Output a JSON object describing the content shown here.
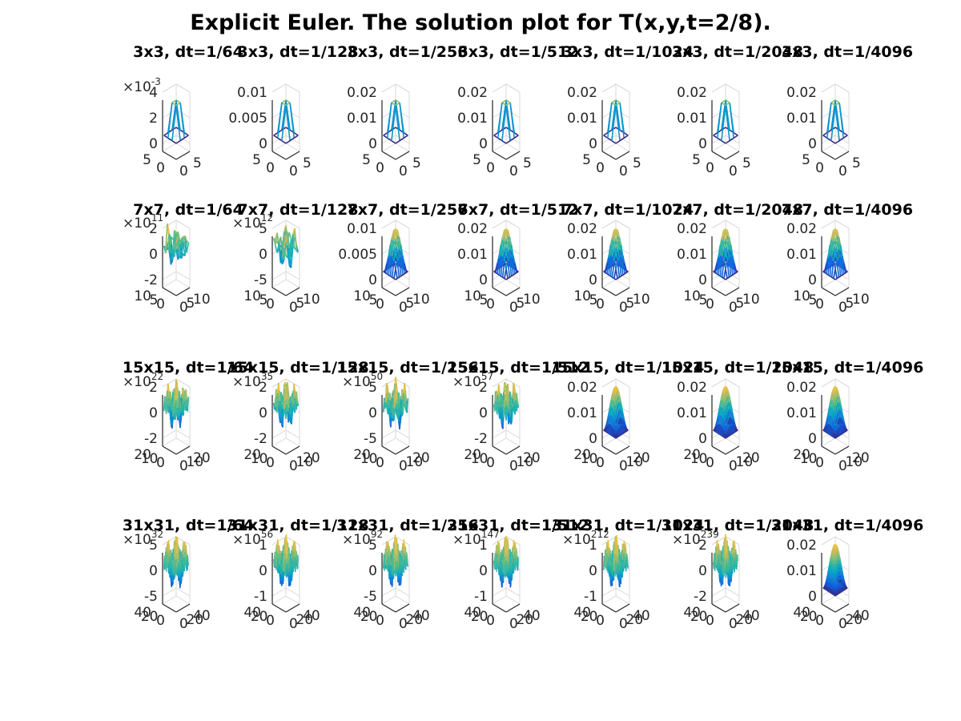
{
  "title": "Explicit Euler. The solution plot for T(x,y,t=2/8).",
  "colors": {
    "axis": "#262626",
    "grid": "#d9d9d9",
    "parula": [
      "#352a87",
      "#0f5cdd",
      "#1481d6",
      "#06a4ca",
      "#2eb7a4",
      "#87bf77",
      "#d1bb59",
      "#fec832",
      "#f9fb0e"
    ]
  },
  "chart_data": [
    {
      "row": 0,
      "col": 0,
      "title": "3x3, dt=1/64",
      "type": "surface",
      "grid_n": 3,
      "stable": true,
      "zticks": [
        "0",
        "2",
        "4"
      ],
      "exponent": "-3",
      "xticks": [
        "0",
        "5"
      ],
      "yticks": [
        "0",
        "5"
      ],
      "zlim": [
        0,
        0.004
      ]
    },
    {
      "row": 0,
      "col": 1,
      "title": "3x3, dt=1/128",
      "type": "surface",
      "grid_n": 3,
      "stable": true,
      "zticks": [
        "0",
        "0.005",
        "0.01"
      ],
      "exponent": "",
      "xticks": [
        "0",
        "5"
      ],
      "yticks": [
        "0",
        "5"
      ],
      "zlim": [
        0,
        0.01
      ]
    },
    {
      "row": 0,
      "col": 2,
      "title": "3x3, dt=1/256",
      "type": "surface",
      "grid_n": 3,
      "stable": true,
      "zticks": [
        "0",
        "0.01",
        "0.02"
      ],
      "exponent": "",
      "xticks": [
        "0",
        "5"
      ],
      "yticks": [
        "0",
        "5"
      ],
      "zlim": [
        0,
        0.02
      ]
    },
    {
      "row": 0,
      "col": 3,
      "title": "3x3, dt=1/512",
      "type": "surface",
      "grid_n": 3,
      "stable": true,
      "zticks": [
        "0",
        "0.01",
        "0.02"
      ],
      "exponent": "",
      "xticks": [
        "0",
        "5"
      ],
      "yticks": [
        "0",
        "5"
      ],
      "zlim": [
        0,
        0.02
      ]
    },
    {
      "row": 0,
      "col": 4,
      "title": "3x3, dt=1/1024",
      "type": "surface",
      "grid_n": 3,
      "stable": true,
      "zticks": [
        "0",
        "0.01",
        "0.02"
      ],
      "exponent": "",
      "xticks": [
        "0",
        "5"
      ],
      "yticks": [
        "0",
        "5"
      ],
      "zlim": [
        0,
        0.02
      ]
    },
    {
      "row": 0,
      "col": 5,
      "title": "3x3, dt=1/2048",
      "type": "surface",
      "grid_n": 3,
      "stable": true,
      "zticks": [
        "0",
        "0.01",
        "0.02"
      ],
      "exponent": "",
      "xticks": [
        "0",
        "5"
      ],
      "yticks": [
        "0",
        "5"
      ],
      "zlim": [
        0,
        0.02
      ]
    },
    {
      "row": 0,
      "col": 6,
      "title": "3x3, dt=1/4096",
      "type": "surface",
      "grid_n": 3,
      "stable": true,
      "zticks": [
        "0",
        "0.01",
        "0.02"
      ],
      "exponent": "",
      "xticks": [
        "0",
        "5"
      ],
      "yticks": [
        "0",
        "5"
      ],
      "zlim": [
        0,
        0.02
      ]
    },
    {
      "row": 1,
      "col": 0,
      "title": "7x7, dt=1/64",
      "type": "surface",
      "grid_n": 7,
      "stable": false,
      "zticks": [
        "-2",
        "0",
        "2"
      ],
      "exponent": "11",
      "xticks": [
        "0",
        "5",
        "10"
      ],
      "yticks": [
        "0",
        "5",
        "10"
      ],
      "zlim": [
        -200000000000.0,
        200000000000.0
      ]
    },
    {
      "row": 1,
      "col": 1,
      "title": "7x7, dt=1/128",
      "type": "surface",
      "grid_n": 7,
      "stable": false,
      "zticks": [
        "-5",
        "0",
        "5"
      ],
      "exponent": "12",
      "xticks": [
        "0",
        "5",
        "10"
      ],
      "yticks": [
        "0",
        "5",
        "10"
      ],
      "zlim": [
        -5000000000000.0,
        5000000000000.0
      ]
    },
    {
      "row": 1,
      "col": 2,
      "title": "7x7, dt=1/256",
      "type": "surface",
      "grid_n": 7,
      "stable": true,
      "zticks": [
        "0",
        "0.005",
        "0.01"
      ],
      "exponent": "",
      "xticks": [
        "0",
        "5",
        "10"
      ],
      "yticks": [
        "0",
        "5",
        "10"
      ],
      "zlim": [
        0,
        0.01
      ]
    },
    {
      "row": 1,
      "col": 3,
      "title": "7x7, dt=1/512",
      "type": "surface",
      "grid_n": 7,
      "stable": true,
      "zticks": [
        "0",
        "0.01",
        "0.02"
      ],
      "exponent": "",
      "xticks": [
        "0",
        "5",
        "10"
      ],
      "yticks": [
        "0",
        "5",
        "10"
      ],
      "zlim": [
        0,
        0.02
      ]
    },
    {
      "row": 1,
      "col": 4,
      "title": "7x7, dt=1/1024",
      "type": "surface",
      "grid_n": 7,
      "stable": true,
      "zticks": [
        "0",
        "0.01",
        "0.02"
      ],
      "exponent": "",
      "xticks": [
        "0",
        "5",
        "10"
      ],
      "yticks": [
        "0",
        "5",
        "10"
      ],
      "zlim": [
        0,
        0.02
      ]
    },
    {
      "row": 1,
      "col": 5,
      "title": "7x7, dt=1/2048",
      "type": "surface",
      "grid_n": 7,
      "stable": true,
      "zticks": [
        "0",
        "0.01",
        "0.02"
      ],
      "exponent": "",
      "xticks": [
        "0",
        "5",
        "10"
      ],
      "yticks": [
        "0",
        "5",
        "10"
      ],
      "zlim": [
        0,
        0.02
      ]
    },
    {
      "row": 1,
      "col": 6,
      "title": "7x7, dt=1/4096",
      "type": "surface",
      "grid_n": 7,
      "stable": true,
      "zticks": [
        "0",
        "0.01",
        "0.02"
      ],
      "exponent": "",
      "xticks": [
        "0",
        "5",
        "10"
      ],
      "yticks": [
        "0",
        "5",
        "10"
      ],
      "zlim": [
        0,
        0.02
      ]
    },
    {
      "row": 2,
      "col": 0,
      "title": "15x15, dt=1/64",
      "type": "surface",
      "grid_n": 15,
      "stable": false,
      "zticks": [
        "-2",
        "0",
        "2"
      ],
      "exponent": "22",
      "xticks": [
        "0",
        "10",
        "20"
      ],
      "yticks": [
        "0",
        "10",
        "20"
      ],
      "zlim": [
        -2e+22,
        2e+22
      ]
    },
    {
      "row": 2,
      "col": 1,
      "title": "15x15, dt=1/128",
      "type": "surface",
      "grid_n": 15,
      "stable": false,
      "zticks": [
        "-2",
        "0",
        "2"
      ],
      "exponent": "35",
      "xticks": [
        "0",
        "10",
        "20"
      ],
      "yticks": [
        "0",
        "10",
        "20"
      ],
      "zlim": [
        -2e+35,
        2e+35
      ]
    },
    {
      "row": 2,
      "col": 2,
      "title": "15x15, dt=1/256",
      "type": "surface",
      "grid_n": 15,
      "stable": false,
      "zticks": [
        "-5",
        "0",
        "5"
      ],
      "exponent": "50",
      "xticks": [
        "0",
        "10",
        "20"
      ],
      "yticks": [
        "0",
        "10",
        "20"
      ],
      "zlim": [
        -5e+50,
        5e+50
      ]
    },
    {
      "row": 2,
      "col": 3,
      "title": "15x15, dt=1/512",
      "type": "surface",
      "grid_n": 15,
      "stable": false,
      "zticks": [
        "-2",
        "0",
        "2"
      ],
      "exponent": "57",
      "xticks": [
        "0",
        "10",
        "20"
      ],
      "yticks": [
        "0",
        "10",
        "20"
      ],
      "zlim": [
        -2e+57,
        2e+57
      ]
    },
    {
      "row": 2,
      "col": 4,
      "title": "15x15, dt=1/1024",
      "type": "surface",
      "grid_n": 15,
      "stable": true,
      "zticks": [
        "0",
        "0.01",
        "0.02"
      ],
      "exponent": "",
      "xticks": [
        "0",
        "10",
        "20"
      ],
      "yticks": [
        "0",
        "10",
        "20"
      ],
      "zlim": [
        0,
        0.02
      ]
    },
    {
      "row": 2,
      "col": 5,
      "title": "15x15, dt=1/2048",
      "type": "surface",
      "grid_n": 15,
      "stable": true,
      "zticks": [
        "0",
        "0.01",
        "0.02"
      ],
      "exponent": "",
      "xticks": [
        "0",
        "10",
        "20"
      ],
      "yticks": [
        "0",
        "10",
        "20"
      ],
      "zlim": [
        0,
        0.02
      ]
    },
    {
      "row": 2,
      "col": 6,
      "title": "15x15, dt=1/4096",
      "type": "surface",
      "grid_n": 15,
      "stable": true,
      "zticks": [
        "0",
        "0.01",
        "0.02"
      ],
      "exponent": "",
      "xticks": [
        "0",
        "10",
        "20"
      ],
      "yticks": [
        "0",
        "10",
        "20"
      ],
      "zlim": [
        0,
        0.02
      ]
    },
    {
      "row": 3,
      "col": 0,
      "title": "31x31, dt=1/64",
      "type": "surface",
      "grid_n": 31,
      "stable": false,
      "zticks": [
        "-5",
        "0",
        "5"
      ],
      "exponent": "32",
      "xticks": [
        "0",
        "20",
        "40"
      ],
      "yticks": [
        "0",
        "20",
        "40"
      ],
      "zlim": [
        -5e+32,
        5e+32
      ]
    },
    {
      "row": 3,
      "col": 1,
      "title": "31x31, dt=1/128",
      "type": "surface",
      "grid_n": 31,
      "stable": false,
      "zticks": [
        "-1",
        "0",
        "1"
      ],
      "exponent": "56",
      "xticks": [
        "0",
        "20",
        "40"
      ],
      "yticks": [
        "0",
        "20",
        "40"
      ],
      "zlim": [
        -1e+56,
        1e+56
      ]
    },
    {
      "row": 3,
      "col": 2,
      "title": "31x31, dt=1/256",
      "type": "surface",
      "grid_n": 31,
      "stable": false,
      "zticks": [
        "-5",
        "0",
        "5"
      ],
      "exponent": "92",
      "xticks": [
        "0",
        "20",
        "40"
      ],
      "yticks": [
        "0",
        "20",
        "40"
      ],
      "zlim": [
        -5e+92,
        5e+92
      ]
    },
    {
      "row": 3,
      "col": 3,
      "title": "31x31, dt=1/512",
      "type": "surface",
      "grid_n": 31,
      "stable": false,
      "zticks": [
        "-1",
        "0",
        "1"
      ],
      "exponent": "147",
      "xticks": [
        "0",
        "20",
        "40"
      ],
      "yticks": [
        "0",
        "20",
        "40"
      ],
      "zlim": [
        -1e+147,
        1e+147
      ]
    },
    {
      "row": 3,
      "col": 4,
      "title": "31x31, dt=1/1024",
      "type": "surface",
      "grid_n": 31,
      "stable": false,
      "zticks": [
        "-1",
        "0",
        "1"
      ],
      "exponent": "212",
      "xticks": [
        "0",
        "20",
        "40"
      ],
      "yticks": [
        "0",
        "20",
        "40"
      ],
      "zlim": [
        -1e+212,
        1e+212
      ]
    },
    {
      "row": 3,
      "col": 5,
      "title": "31x31, dt=1/2048",
      "type": "surface",
      "grid_n": 31,
      "stable": false,
      "zticks": [
        "-2",
        "0",
        "2"
      ],
      "exponent": "239",
      "xticks": [
        "0",
        "20",
        "40"
      ],
      "yticks": [
        "0",
        "20",
        "40"
      ],
      "zlim": [
        -2e+239,
        2e+239
      ]
    },
    {
      "row": 3,
      "col": 6,
      "title": "31x31, dt=1/4096",
      "type": "surface",
      "grid_n": 31,
      "stable": true,
      "zticks": [
        "0",
        "0.01",
        "0.02"
      ],
      "exponent": "",
      "xticks": [
        "0",
        "20",
        "40"
      ],
      "yticks": [
        "0",
        "20",
        "40"
      ],
      "zlim": [
        0,
        0.02
      ]
    }
  ]
}
